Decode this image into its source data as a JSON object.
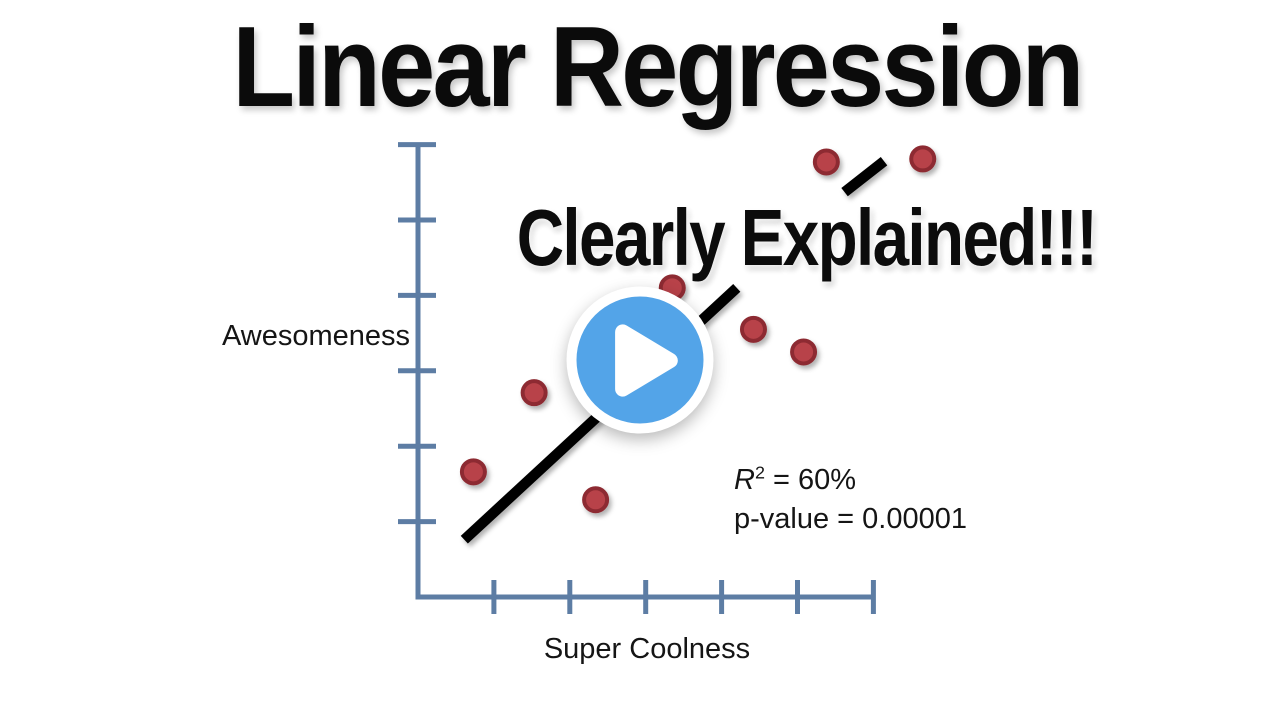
{
  "title": "Linear Regression",
  "subtitle": "Clearly Explained!!!",
  "stats": {
    "r_symbol": "R",
    "r_exponent": "2",
    "r_value": " = 60%",
    "p_value": "p-value = 0.00001"
  },
  "play_overlay": {
    "button_color": "#53a4e8",
    "ring_color": "#ffffff",
    "glyph": "play-triangle"
  },
  "chart_data": {
    "type": "scatter",
    "title": "Linear Regression",
    "subtitle": "Clearly Explained!!!",
    "xlabel": "Super Coolness",
    "ylabel": "Awesomeness",
    "x_range": [
      0,
      6
    ],
    "y_range": [
      0,
      6
    ],
    "x_tick_count": 6,
    "y_tick_count": 6,
    "tick_labels_shown": false,
    "grid": false,
    "legend": "none",
    "points": [
      [
        5.38,
        5.77
      ],
      [
        6.65,
        5.81
      ],
      [
        3.35,
        4.1
      ],
      [
        4.42,
        3.55
      ],
      [
        5.08,
        3.25
      ],
      [
        1.53,
        2.71
      ],
      [
        0.73,
        1.66
      ],
      [
        2.34,
        1.29
      ]
    ],
    "regression_line": {
      "x1": 0.61,
      "y1": 0.76,
      "x2": 6.14,
      "y2": 5.78,
      "visible_segments": [
        [
          0.61,
          0.76,
          4.2,
          4.1
        ],
        [
          5.62,
          5.37,
          6.14,
          5.78
        ]
      ]
    },
    "annotations": [
      "R² = 60%",
      "p-value = 0.00001"
    ],
    "colors": {
      "point_fill": "#b8434a",
      "point_border": "#8d2c31",
      "line": "#000000",
      "axis": "#5d7da4"
    }
  }
}
